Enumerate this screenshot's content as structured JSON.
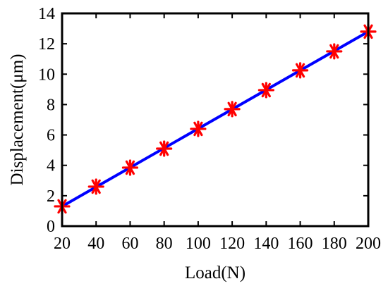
{
  "chart_data": {
    "type": "line",
    "xlabel": "Load(N)",
    "ylabel": "Displacement(μm)",
    "xlim": [
      20,
      200
    ],
    "ylim": [
      0,
      14
    ],
    "x_ticks": [
      20,
      40,
      60,
      80,
      100,
      120,
      140,
      160,
      180,
      200
    ],
    "y_ticks": [
      0,
      2,
      4,
      6,
      8,
      10,
      12,
      14
    ],
    "grid": false,
    "legend": "none",
    "series": [
      {
        "kind": "markers",
        "marker": "asterisk",
        "color": "#ff0000",
        "x": [
          20,
          40,
          60,
          80,
          100,
          120,
          140,
          160,
          180,
          200
        ],
        "y": [
          1.3,
          2.6,
          3.85,
          5.1,
          6.4,
          7.7,
          8.95,
          10.25,
          11.5,
          12.8
        ]
      },
      {
        "kind": "line",
        "color": "#0000ff",
        "x": [
          20,
          200
        ],
        "y": [
          1.3,
          12.8
        ]
      }
    ]
  }
}
